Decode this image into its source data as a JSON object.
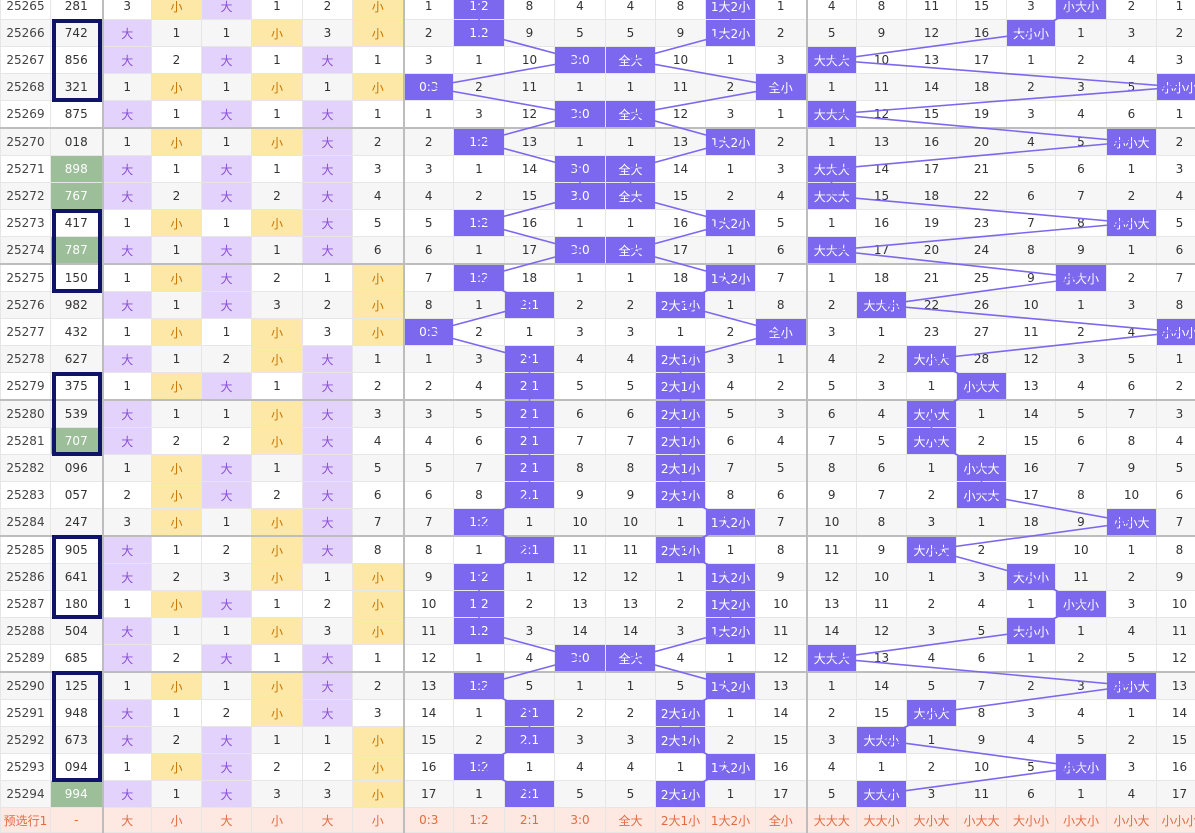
{
  "table_rows": [
    [
      "25265",
      "281",
      "3",
      "小",
      "大",
      "1",
      "2",
      "小",
      "1",
      "1:2",
      "8",
      "4",
      "4",
      "8",
      "1大2小",
      "1",
      "4",
      "8",
      "11",
      "15",
      "3",
      "小大小",
      "2",
      "1"
    ],
    [
      "25266",
      "742",
      "大",
      "1",
      "1",
      "小",
      "3",
      "小",
      "2",
      "1:2",
      "9",
      "5",
      "5",
      "9",
      "1大2小",
      "2",
      "5",
      "9",
      "12",
      "16",
      "大小小",
      "1",
      "3",
      "2"
    ],
    [
      "25267",
      "856",
      "大",
      "2",
      "大",
      "1",
      "大",
      "1",
      "3",
      "1",
      "10",
      "3:0",
      "全大",
      "10",
      "1",
      "3",
      "大大大",
      "10",
      "13",
      "17",
      "1",
      "2",
      "4",
      "3"
    ],
    [
      "25268",
      "321",
      "1",
      "小",
      "1",
      "小",
      "1",
      "小",
      "0:3",
      "2",
      "11",
      "1",
      "1",
      "11",
      "2",
      "全小",
      "1",
      "11",
      "14",
      "18",
      "2",
      "3",
      "5",
      "小小小"
    ],
    [
      "25269",
      "875",
      "大",
      "1",
      "大",
      "1",
      "大",
      "1",
      "1",
      "3",
      "12",
      "3:0",
      "全大",
      "12",
      "3",
      "1",
      "大大大",
      "12",
      "15",
      "19",
      "3",
      "4",
      "6",
      "1"
    ],
    [
      "25270",
      "018",
      "1",
      "小",
      "1",
      "小",
      "大",
      "2",
      "2",
      "1:2",
      "13",
      "1",
      "1",
      "13",
      "1大2小",
      "2",
      "1",
      "13",
      "16",
      "20",
      "4",
      "5",
      "小小大",
      "2"
    ],
    [
      "25271",
      "898",
      "大",
      "1",
      "大",
      "1",
      "大",
      "3",
      "3",
      "1",
      "14",
      "3:0",
      "全大",
      "14",
      "1",
      "3",
      "大大大",
      "14",
      "17",
      "21",
      "5",
      "6",
      "1",
      "3"
    ],
    [
      "25272",
      "767",
      "大",
      "2",
      "大",
      "2",
      "大",
      "4",
      "4",
      "2",
      "15",
      "3:0",
      "全大",
      "15",
      "2",
      "4",
      "大大大",
      "15",
      "18",
      "22",
      "6",
      "7",
      "2",
      "4"
    ],
    [
      "25273",
      "417",
      "1",
      "小",
      "1",
      "小",
      "大",
      "5",
      "5",
      "1:2",
      "16",
      "1",
      "1",
      "16",
      "1大2小",
      "5",
      "1",
      "16",
      "19",
      "23",
      "7",
      "8",
      "小小大",
      "5"
    ],
    [
      "25274",
      "787",
      "大",
      "1",
      "大",
      "1",
      "大",
      "6",
      "6",
      "1",
      "17",
      "3:0",
      "全大",
      "17",
      "1",
      "6",
      "大大大",
      "17",
      "20",
      "24",
      "8",
      "9",
      "1",
      "6"
    ],
    [
      "25275",
      "150",
      "1",
      "小",
      "大",
      "2",
      "1",
      "小",
      "7",
      "1:2",
      "18",
      "1",
      "1",
      "18",
      "1大2小",
      "7",
      "1",
      "18",
      "21",
      "25",
      "9",
      "小大小",
      "2",
      "7"
    ],
    [
      "25276",
      "982",
      "大",
      "1",
      "大",
      "3",
      "2",
      "小",
      "8",
      "1",
      "2:1",
      "2",
      "2",
      "2大1小",
      "1",
      "8",
      "2",
      "大大小",
      "22",
      "26",
      "10",
      "1",
      "3",
      "8"
    ],
    [
      "25277",
      "432",
      "1",
      "小",
      "1",
      "小",
      "3",
      "小",
      "0:3",
      "2",
      "1",
      "3",
      "3",
      "1",
      "2",
      "全小",
      "3",
      "1",
      "23",
      "27",
      "11",
      "2",
      "4",
      "小小小"
    ],
    [
      "25278",
      "627",
      "大",
      "1",
      "2",
      "小",
      "大",
      "1",
      "1",
      "3",
      "2:1",
      "4",
      "4",
      "2大1小",
      "3",
      "1",
      "4",
      "2",
      "大小大",
      "28",
      "12",
      "3",
      "5",
      "1"
    ],
    [
      "25279",
      "375",
      "1",
      "小",
      "大",
      "1",
      "大",
      "2",
      "2",
      "4",
      "2:1",
      "5",
      "5",
      "2大1小",
      "4",
      "2",
      "5",
      "3",
      "1",
      "小大大",
      "13",
      "4",
      "6",
      "2"
    ],
    [
      "25280",
      "539",
      "大",
      "1",
      "1",
      "小",
      "大",
      "3",
      "3",
      "5",
      "2:1",
      "6",
      "6",
      "2大1小",
      "5",
      "3",
      "6",
      "4",
      "大小大",
      "1",
      "14",
      "5",
      "7",
      "3"
    ],
    [
      "25281",
      "707",
      "大",
      "2",
      "2",
      "小",
      "大",
      "4",
      "4",
      "6",
      "2:1",
      "7",
      "7",
      "2大1小",
      "6",
      "4",
      "7",
      "5",
      "大小大",
      "2",
      "15",
      "6",
      "8",
      "4"
    ],
    [
      "25282",
      "096",
      "1",
      "小",
      "大",
      "1",
      "大",
      "5",
      "5",
      "7",
      "2:1",
      "8",
      "8",
      "2大1小",
      "7",
      "5",
      "8",
      "6",
      "1",
      "小大大",
      "16",
      "7",
      "9",
      "5"
    ],
    [
      "25283",
      "057",
      "2",
      "小",
      "大",
      "2",
      "大",
      "6",
      "6",
      "8",
      "2:1",
      "9",
      "9",
      "2大1小",
      "8",
      "6",
      "9",
      "7",
      "2",
      "小大大",
      "17",
      "8",
      "10",
      "6"
    ],
    [
      "25284",
      "247",
      "3",
      "小",
      "1",
      "小",
      "大",
      "7",
      "7",
      "1:2",
      "1",
      "10",
      "10",
      "1",
      "1大2小",
      "7",
      "10",
      "8",
      "3",
      "1",
      "18",
      "9",
      "小小大",
      "7"
    ],
    [
      "25285",
      "905",
      "大",
      "1",
      "2",
      "小",
      "大",
      "8",
      "8",
      "1",
      "2:1",
      "11",
      "11",
      "2大1小",
      "1",
      "8",
      "11",
      "9",
      "大小大",
      "2",
      "19",
      "10",
      "1",
      "8"
    ],
    [
      "25286",
      "641",
      "大",
      "2",
      "3",
      "小",
      "1",
      "小",
      "9",
      "1:2",
      "1",
      "12",
      "12",
      "1",
      "1大2小",
      "9",
      "12",
      "10",
      "1",
      "3",
      "大小小",
      "11",
      "2",
      "9"
    ],
    [
      "25287",
      "180",
      "1",
      "小",
      "大",
      "1",
      "2",
      "小",
      "10",
      "1:2",
      "2",
      "13",
      "13",
      "2",
      "1大2小",
      "10",
      "13",
      "11",
      "2",
      "4",
      "1",
      "小大小",
      "3",
      "10"
    ],
    [
      "25288",
      "504",
      "大",
      "1",
      "1",
      "小",
      "3",
      "小",
      "11",
      "1:2",
      "3",
      "14",
      "14",
      "3",
      "1大2小",
      "11",
      "14",
      "12",
      "3",
      "5",
      "大小小",
      "1",
      "4",
      "11"
    ],
    [
      "25289",
      "685",
      "大",
      "2",
      "大",
      "1",
      "大",
      "1",
      "12",
      "1",
      "4",
      "3:0",
      "全大",
      "4",
      "1",
      "12",
      "大大大",
      "13",
      "4",
      "6",
      "1",
      "2",
      "5",
      "12"
    ],
    [
      "25290",
      "125",
      "1",
      "小",
      "1",
      "小",
      "大",
      "2",
      "13",
      "1:2",
      "5",
      "1",
      "1",
      "5",
      "1大2小",
      "13",
      "1",
      "14",
      "5",
      "7",
      "2",
      "3",
      "小小大",
      "13"
    ],
    [
      "25291",
      "948",
      "大",
      "1",
      "2",
      "小",
      "大",
      "3",
      "14",
      "1",
      "2:1",
      "2",
      "2",
      "2大1小",
      "1",
      "14",
      "2",
      "15",
      "大小大",
      "8",
      "3",
      "4",
      "1",
      "14"
    ],
    [
      "25292",
      "673",
      "大",
      "2",
      "大",
      "1",
      "1",
      "小",
      "15",
      "2",
      "2:1",
      "3",
      "3",
      "2大1小",
      "2",
      "15",
      "3",
      "大大小",
      "1",
      "9",
      "4",
      "5",
      "2",
      "15"
    ],
    [
      "25293",
      "094",
      "1",
      "小",
      "大",
      "2",
      "2",
      "小",
      "16",
      "1:2",
      "1",
      "4",
      "4",
      "1",
      "1大2小",
      "16",
      "4",
      "1",
      "2",
      "10",
      "5",
      "小大小",
      "3",
      "16"
    ],
    [
      "25294",
      "994",
      "大",
      "1",
      "大",
      "3",
      "3",
      "小",
      "17",
      "1",
      "2:1",
      "5",
      "5",
      "2大1小",
      "1",
      "17",
      "5",
      "大大小",
      "3",
      "11",
      "6",
      "1",
      "4",
      "17"
    ]
  ],
  "footer_row": [
    "预选行1",
    "-",
    "大",
    "小",
    "大",
    "小",
    "大",
    "小",
    "0:3",
    "1:2",
    "2:1",
    "3:0",
    "全大",
    "2大1小",
    "1大2小",
    "全小",
    "大大大",
    "大大小",
    "大小大",
    "小大大",
    "大小小",
    "小大小",
    "小小大",
    "小小小"
  ],
  "colors": {
    "purple_fill": "#e3d2fb",
    "yellow_fill": "#fde8a8",
    "hit_fill": "#7b68ee",
    "green_fill": "#9cbf9a",
    "box_border": "#0f1466",
    "footer_fill": "#fde9e1",
    "footer_text": "#e36b42"
  }
}
